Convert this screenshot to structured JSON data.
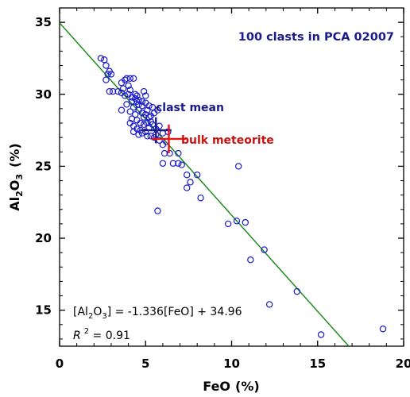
{
  "chart_data": {
    "type": "scatter",
    "title": "100 clasts in PCA 02007",
    "xlabel": "FeO",
    "xlabel_unit": "(%)",
    "ylabel_main": "Al",
    "ylabel_sub1": "2",
    "ylabel_mid": "O",
    "ylabel_sub2": "3",
    "ylabel_unit": "(%)",
    "xlim": [
      0,
      20
    ],
    "ylim": [
      12.5,
      36
    ],
    "xticks": [
      0,
      5,
      10,
      15,
      20
    ],
    "yticks": [
      15,
      20,
      25,
      30,
      35
    ],
    "xtick_labels": [
      "0",
      "5",
      "10",
      "15",
      "20"
    ],
    "ytick_labels": [
      "15",
      "20",
      "25",
      "30",
      "35"
    ],
    "grid": false,
    "colors": {
      "points": "#1a1acc",
      "fit_line": "#118811",
      "clast_mean": "#1a1a8c",
      "bulk": "#ee1111"
    },
    "points": [
      [
        2.4,
        32.5
      ],
      [
        2.6,
        32.4
      ],
      [
        2.7,
        32.0
      ],
      [
        2.8,
        31.4
      ],
      [
        2.9,
        31.6
      ],
      [
        2.7,
        31.0
      ],
      [
        3.0,
        31.4
      ],
      [
        2.9,
        30.2
      ],
      [
        3.1,
        30.2
      ],
      [
        3.4,
        30.2
      ],
      [
        3.6,
        30.1
      ],
      [
        3.7,
        30.4
      ],
      [
        3.6,
        30.8
      ],
      [
        3.8,
        31.0
      ],
      [
        3.9,
        31.1
      ],
      [
        4.1,
        31.1
      ],
      [
        4.1,
        30.3
      ],
      [
        4.3,
        31.1
      ],
      [
        3.8,
        29.9
      ],
      [
        4.0,
        30.0
      ],
      [
        4.2,
        29.8
      ],
      [
        4.4,
        30.0
      ],
      [
        4.5,
        29.9
      ],
      [
        4.5,
        29.5
      ],
      [
        4.6,
        29.6
      ],
      [
        4.8,
        29.5
      ],
      [
        5.0,
        29.4
      ],
      [
        5.2,
        29.2
      ],
      [
        5.4,
        29.1
      ],
      [
        4.2,
        29.5
      ],
      [
        4.3,
        29.1
      ],
      [
        4.1,
        28.8
      ],
      [
        4.4,
        28.6
      ],
      [
        4.6,
        28.9
      ],
      [
        4.8,
        28.7
      ],
      [
        5.0,
        28.6
      ],
      [
        5.3,
        28.5
      ],
      [
        5.5,
        28.7
      ],
      [
        4.2,
        28.3
      ],
      [
        4.5,
        28.2
      ],
      [
        4.7,
        28.0
      ],
      [
        4.9,
        27.9
      ],
      [
        5.1,
        28.0
      ],
      [
        5.3,
        28.1
      ],
      [
        3.6,
        28.9
      ],
      [
        4.3,
        27.8
      ],
      [
        4.5,
        27.6
      ],
      [
        4.7,
        27.5
      ],
      [
        5.0,
        27.4
      ],
      [
        5.2,
        27.7
      ],
      [
        5.4,
        27.9
      ],
      [
        5.6,
        27.6
      ],
      [
        5.8,
        27.8
      ],
      [
        4.3,
        27.4
      ],
      [
        4.8,
        27.3
      ],
      [
        5.1,
        27.1
      ],
      [
        5.3,
        27.1
      ],
      [
        5.5,
        27.0
      ],
      [
        5.0,
        29.9
      ],
      [
        4.8,
        29.2
      ],
      [
        4.6,
        29.3
      ],
      [
        4.9,
        30.2
      ],
      [
        5.1,
        28.9
      ],
      [
        5.6,
        27.2
      ],
      [
        6.0,
        27.3
      ],
      [
        6.3,
        27.4
      ],
      [
        6.2,
        26.7
      ],
      [
        6.0,
        26.5
      ],
      [
        5.8,
        26.8
      ],
      [
        6.1,
        25.9
      ],
      [
        6.4,
        25.9
      ],
      [
        6.9,
        25.9
      ],
      [
        6.6,
        25.2
      ],
      [
        6.9,
        25.2
      ],
      [
        7.1,
        25.1
      ],
      [
        6.0,
        25.2
      ],
      [
        7.4,
        24.4
      ],
      [
        7.6,
        23.9
      ],
      [
        7.4,
        23.5
      ],
      [
        8.0,
        24.4
      ],
      [
        8.2,
        22.8
      ],
      [
        5.7,
        21.9
      ],
      [
        9.8,
        21.0
      ],
      [
        10.3,
        21.2
      ],
      [
        10.8,
        21.1
      ],
      [
        11.1,
        18.5
      ],
      [
        11.9,
        19.2
      ],
      [
        12.2,
        15.4
      ],
      [
        13.8,
        16.3
      ],
      [
        15.2,
        13.3
      ],
      [
        18.8,
        13.7
      ],
      [
        10.4,
        25.0
      ],
      [
        4.0,
        30.6
      ],
      [
        4.4,
        29.7
      ],
      [
        5.2,
        28.4
      ],
      [
        4.9,
        28.4
      ],
      [
        3.9,
        29.3
      ],
      [
        5.7,
        28.9
      ],
      [
        4.1,
        28.0
      ],
      [
        4.6,
        27.2
      ]
    ],
    "fit_line": {
      "slope": -1.336,
      "intercept": 34.96,
      "x_range": [
        0,
        17.12
      ]
    },
    "clast_mean": {
      "x": 5.6,
      "y": 27.5,
      "x_err": 0.9,
      "y_err": 0.9,
      "label": "clast mean"
    },
    "bulk_meteorite": {
      "x": 6.35,
      "y": 26.9,
      "x_err": 1.0,
      "y_err": 1.0,
      "label": "bulk meteorite"
    },
    "equation": {
      "part1": "[Al",
      "sub1": "2",
      "part2": "O",
      "sub2": "3",
      "part3": "] = -1.336[FeO] + 34.96",
      "r_symbol": "R",
      "r_sup": "2",
      "r_rest": " = 0.91"
    }
  }
}
